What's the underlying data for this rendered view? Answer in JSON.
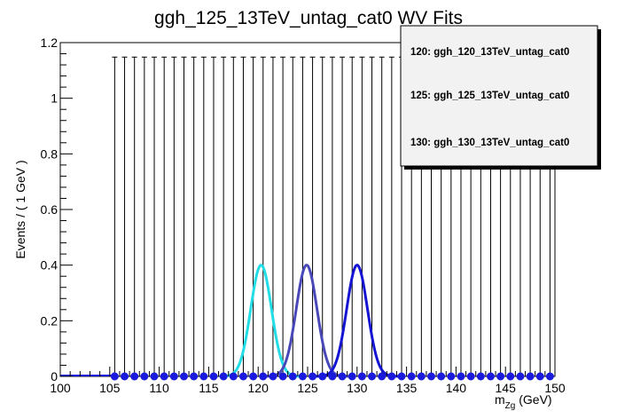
{
  "chart_data": {
    "type": "line",
    "title": "ggh_125_13TeV_untag_cat0 WV Fits",
    "xlabel_main": "m",
    "xlabel_sub": "Zg",
    "xlabel_unit": " (GeV)",
    "ylabel": "Events / ( 1 GeV )",
    "xlim": [
      100,
      150
    ],
    "ylim": [
      0,
      1.2
    ],
    "x_ticks": [
      "100",
      "105",
      "110",
      "115",
      "120",
      "125",
      "130",
      "135",
      "140",
      "145",
      "150"
    ],
    "y_ticks": [
      "0",
      "0.2",
      "0.4",
      "0.6",
      "0.8",
      "1",
      "1.2"
    ],
    "grid": false,
    "legend_position": "top-right",
    "data_points": {
      "x": [
        105.5,
        106.5,
        107.5,
        108.5,
        109.5,
        110.5,
        111.5,
        112.5,
        113.5,
        114.5,
        115.5,
        116.5,
        117.5,
        118.5,
        119.5,
        120.5,
        121.5,
        122.5,
        123.5,
        124.5,
        125.5,
        126.5,
        127.5,
        128.5,
        129.5,
        130.5,
        131.5,
        132.5,
        133.5,
        134.5,
        135.5,
        136.5,
        137.5,
        138.5,
        139.5,
        140.5,
        141.5,
        142.5,
        143.5,
        144.5,
        145.5,
        146.5,
        147.5,
        148.5,
        149.5
      ],
      "y": [
        0,
        0,
        0,
        0,
        0,
        0,
        0,
        0,
        0,
        0,
        0,
        0,
        0,
        0,
        0,
        0,
        0,
        0,
        0,
        0,
        0,
        0,
        0,
        0,
        0,
        0,
        0,
        0,
        0,
        0,
        0,
        0,
        0,
        0,
        0,
        0,
        0,
        0,
        0,
        0,
        0,
        0,
        0,
        0,
        0
      ],
      "error_upper": 1.148,
      "marker_color": "#1a1adc"
    },
    "series": [
      {
        "name": "120: ggh_120_13TeV_untag_cat0",
        "mean": 120.3,
        "sigma": 1.05,
        "peak": 0.4,
        "color": "#22dde6"
      },
      {
        "name": "125: ggh_125_13TeV_untag_cat0",
        "mean": 124.9,
        "sigma": 1.05,
        "peak": 0.4,
        "color": "#4848b8"
      },
      {
        "name": "130: ggh_130_13TeV_untag_cat0",
        "mean": 130.0,
        "sigma": 1.05,
        "peak": 0.4,
        "color": "#1414d2"
      }
    ]
  }
}
